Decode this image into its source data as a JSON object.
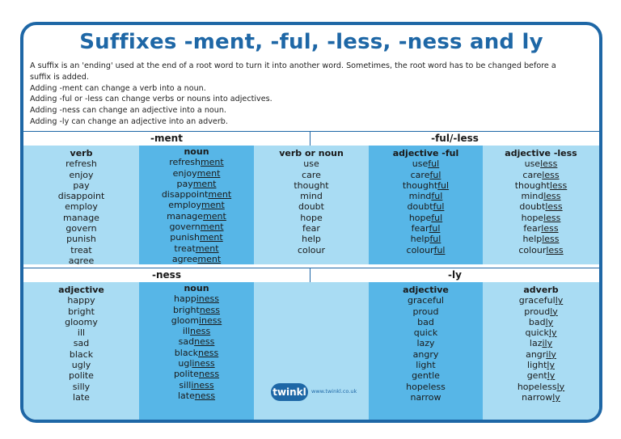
{
  "title": "Suffixes -ment, -ful, -less, -ness and ly",
  "intro": [
    "A suffix is an 'ending' used at the end of a root word to turn it into another word. Sometimes, the root word has to be changed before a",
    "suffix is added.",
    "Adding -ment can change a verb into a noun.",
    "Adding -ful or -less can change verbs or nouns into adjectives.",
    "Adding -ness can change an adjective into a noun.",
    "Adding -ly can change an adjective into an adverb."
  ],
  "sections": {
    "ment": "-ment",
    "ful_less": "-ful/-less",
    "ness": "-ness",
    "ly": "-ly"
  },
  "top": {
    "verb": {
      "head": "verb",
      "words": [
        "refresh",
        "enjoy",
        "pay",
        "disappoint",
        "employ",
        "manage",
        "govern",
        "punish",
        "treat",
        "agree"
      ]
    },
    "noun": {
      "head": "noun",
      "words": [
        {
          "root": "refresh",
          "suffix": "ment"
        },
        {
          "root": "enjoy",
          "suffix": "ment"
        },
        {
          "root": "pay",
          "suffix": "ment"
        },
        {
          "root": "disappoint",
          "suffix": "ment"
        },
        {
          "root": "employ",
          "suffix": "ment"
        },
        {
          "root": "manage",
          "suffix": "ment"
        },
        {
          "root": "govern",
          "suffix": "ment"
        },
        {
          "root": "punish",
          "suffix": "ment"
        },
        {
          "root": "treat",
          "suffix": "ment"
        },
        {
          "root": "agree",
          "suffix": "ment"
        }
      ]
    },
    "verb_or_noun": {
      "head": "verb or noun",
      "words": [
        "use",
        "care",
        "thought",
        "mind",
        "doubt",
        "hope",
        "fear",
        "help",
        "colour"
      ]
    },
    "adj_ful": {
      "head": "adjective -ful",
      "words": [
        {
          "root": "use",
          "suffix": "ful"
        },
        {
          "root": "care",
          "suffix": "ful"
        },
        {
          "root": "thought",
          "suffix": "ful"
        },
        {
          "root": "mind",
          "suffix": "ful"
        },
        {
          "root": "doubt",
          "suffix": "ful"
        },
        {
          "root": "hope",
          "suffix": "ful"
        },
        {
          "root": "fear",
          "suffix": "ful"
        },
        {
          "root": "help",
          "suffix": "ful"
        },
        {
          "root": "colour",
          "suffix": "ful"
        }
      ]
    },
    "adj_less": {
      "head": "adjective -less",
      "words": [
        {
          "root": "use",
          "suffix": "less"
        },
        {
          "root": "care",
          "suffix": "less"
        },
        {
          "root": "thought",
          "suffix": "less"
        },
        {
          "root": "mind",
          "suffix": "less"
        },
        {
          "root": "doubt",
          "suffix": "less"
        },
        {
          "root": "hope",
          "suffix": "less"
        },
        {
          "root": "fear",
          "suffix": "less"
        },
        {
          "root": "help",
          "suffix": "less"
        },
        {
          "root": "colour",
          "suffix": "less"
        }
      ]
    }
  },
  "bottom": {
    "adjective": {
      "head": "adjective",
      "words": [
        "happy",
        "bright",
        "gloomy",
        "ill",
        "sad",
        "black",
        "ugly",
        "polite",
        "silly",
        "late"
      ]
    },
    "noun": {
      "head": "noun",
      "words": [
        {
          "root": "happ",
          "suffix": "iness"
        },
        {
          "root": "bright",
          "suffix": "ness"
        },
        {
          "root": "gloom",
          "suffix": "iness"
        },
        {
          "root": "ill",
          "suffix": "ness"
        },
        {
          "root": "sad",
          "suffix": "ness"
        },
        {
          "root": "black",
          "suffix": "ness"
        },
        {
          "root": "ugl",
          "suffix": "iness"
        },
        {
          "root": "polite",
          "suffix": "ness"
        },
        {
          "root": "sill",
          "suffix": "iness"
        },
        {
          "root": "late",
          "suffix": "ness"
        }
      ]
    },
    "adjective_ly": {
      "head": "adjective",
      "words": [
        "graceful",
        "proud",
        "bad",
        "quick",
        "lazy",
        "angry",
        "light",
        "gentle",
        "hopeless",
        "narrow"
      ]
    },
    "adverb": {
      "head": "adverb",
      "words": [
        {
          "root": "graceful",
          "suffix": "ly"
        },
        {
          "root": "proud",
          "suffix": "ly"
        },
        {
          "root": "bad",
          "suffix": "ly"
        },
        {
          "root": "quick",
          "suffix": "ly"
        },
        {
          "root": "laz",
          "suffix": "ily"
        },
        {
          "root": "angr",
          "suffix": "ily"
        },
        {
          "root": "light",
          "suffix": "ly"
        },
        {
          "root": "gent",
          "suffix": "ly"
        },
        {
          "root": "hopeless",
          "suffix": "ly"
        },
        {
          "root": "narrow",
          "suffix": "ly"
        }
      ]
    }
  },
  "logo": {
    "brand": "twinkl",
    "url": "www.twinkl.co.uk"
  },
  "colors": {
    "border": "#1e67a6",
    "light_cell": "#a9dcf3",
    "dark_cell": "#57b6e7"
  }
}
